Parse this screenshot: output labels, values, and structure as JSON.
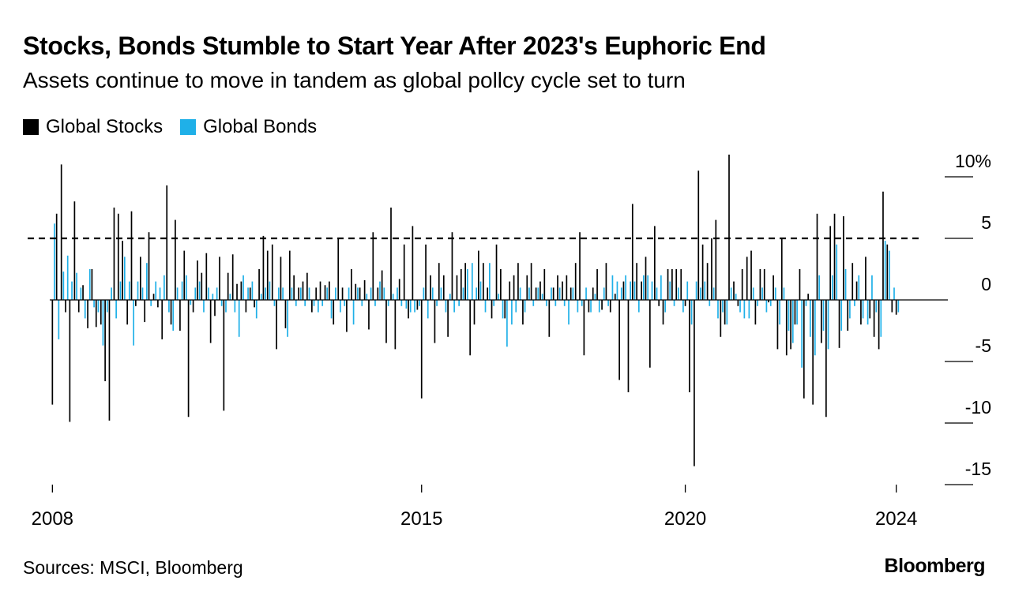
{
  "header": {
    "title": "Stocks, Bonds Stumble to Start Year After 2023's Euphoric End",
    "subtitle": "Assets continue to move in tandem as global pollcy cycle set to turn"
  },
  "footer": {
    "source": "Sources: MSCI, Bloomberg",
    "brand": "Bloomberg"
  },
  "chart_data": {
    "type": "bar",
    "title": "Stocks, Bonds Stumble to Start Year After 2023's Euphoric End",
    "subtitle": "Assets continue to move in tandem as global pollcy cycle set to turn",
    "x_unit": "year",
    "xlim": [
      2007.95,
      2024.05
    ],
    "x_ticks": [
      2008,
      2015,
      2020,
      2024
    ],
    "x_tick_labels": [
      "2008",
      "2015",
      "2020",
      "2024"
    ],
    "y_ticks": [
      10,
      5,
      0,
      -5,
      -10,
      -15
    ],
    "y_tick_labels": [
      "10%",
      "5",
      "0",
      "-5",
      "-10",
      "-15"
    ],
    "ylim": [
      -15.5,
      12
    ],
    "reference_line": {
      "value": 5,
      "style": "dashed"
    },
    "legend_position": "top-left",
    "series": [
      {
        "name": "Global Stocks",
        "color": "#000000",
        "x": [
          2008.0,
          2008.08,
          2008.17,
          2008.25,
          2008.33,
          2008.42,
          2008.5,
          2008.58,
          2008.67,
          2008.75,
          2008.83,
          2008.92,
          2009.0,
          2009.08,
          2009.17,
          2009.25,
          2009.33,
          2009.42,
          2009.5,
          2009.58,
          2009.67,
          2009.75,
          2009.83,
          2009.92,
          2010.0,
          2010.08,
          2010.17,
          2010.25,
          2010.33,
          2010.42,
          2010.5,
          2010.58,
          2010.67,
          2010.75,
          2010.83,
          2010.92,
          2011.0,
          2011.08,
          2011.17,
          2011.25,
          2011.33,
          2011.42,
          2011.5,
          2011.58,
          2011.67,
          2011.75,
          2011.83,
          2011.92,
          2012.0,
          2012.08,
          2012.17,
          2012.25,
          2012.33,
          2012.42,
          2012.5,
          2012.58,
          2012.67,
          2012.75,
          2012.83,
          2012.92,
          2013.0,
          2013.08,
          2013.17,
          2013.25,
          2013.33,
          2013.42,
          2013.5,
          2013.58,
          2013.67,
          2013.75,
          2013.83,
          2013.92,
          2014.0,
          2014.08,
          2014.17,
          2014.25,
          2014.33,
          2014.42,
          2014.5,
          2014.58,
          2014.67,
          2014.75,
          2014.83,
          2014.92,
          2015.0,
          2015.08,
          2015.17,
          2015.25,
          2015.33,
          2015.42,
          2015.5,
          2015.58,
          2015.67,
          2015.75,
          2015.83,
          2015.92,
          2016.0,
          2016.08,
          2016.17,
          2016.25,
          2016.33,
          2016.42,
          2016.5,
          2016.58,
          2016.67,
          2016.75,
          2016.83,
          2016.92,
          2017.0,
          2017.08,
          2017.17,
          2017.25,
          2017.33,
          2017.42,
          2017.5,
          2017.58,
          2017.67,
          2017.75,
          2017.83,
          2017.92,
          2018.0,
          2018.08,
          2018.17,
          2018.25,
          2018.33,
          2018.42,
          2018.5,
          2018.58,
          2018.67,
          2018.75,
          2018.83,
          2018.92,
          2019.0,
          2019.08,
          2019.17,
          2019.25,
          2019.33,
          2019.42,
          2019.5,
          2019.58,
          2019.67,
          2019.75,
          2019.83,
          2019.92,
          2020.0,
          2020.08,
          2020.17,
          2020.25,
          2020.33,
          2020.42,
          2020.5,
          2020.58,
          2020.67,
          2020.75,
          2020.83,
          2020.92,
          2021.0,
          2021.08,
          2021.17,
          2021.25,
          2021.33,
          2021.42,
          2021.5,
          2021.58,
          2021.67,
          2021.75,
          2021.83,
          2021.92,
          2022.0,
          2022.08,
          2022.17,
          2022.25,
          2022.33,
          2022.42,
          2022.5,
          2022.58,
          2022.67,
          2022.75,
          2022.83,
          2022.92,
          2023.0,
          2023.08,
          2023.17,
          2023.25,
          2023.33,
          2023.42,
          2023.5,
          2023.58,
          2023.67,
          2023.75,
          2023.83,
          2023.92,
          2024.0
        ],
        "values": [
          -8.5,
          7.0,
          11.0,
          -1.0,
          -9.9,
          8.0,
          -1.0,
          1.2,
          -2.3,
          2.5,
          -2.2,
          -2.0,
          -6.6,
          -9.8,
          7.5,
          7.0,
          4.8,
          -2.0,
          7.2,
          -0.5,
          3.5,
          -1.8,
          5.5,
          0.5,
          -0.6,
          -3.2,
          9.3,
          -2.0,
          6.5,
          -2.5,
          4.0,
          -9.5,
          -1.0,
          3.2,
          2.2,
          3.8,
          -3.5,
          -1.3,
          3.5,
          -9.0,
          2.2,
          3.7,
          1.3,
          1.5,
          -1.0,
          1.0,
          -0.6,
          2.5,
          5.2,
          4.0,
          4.5,
          -4.0,
          3.5,
          -2.3,
          4.0,
          2.0,
          1.0,
          1.5,
          2.2,
          -1.0,
          1.0,
          1.5,
          1.2,
          1.5,
          -2.0,
          5.0,
          1.0,
          -2.6,
          2.5,
          1.3,
          1.0,
          1.6,
          -2.4,
          5.5,
          1.0,
          2.4,
          -3.5,
          7.5,
          -4.0,
          1.7,
          4.5,
          -1.5,
          6.0,
          -0.8,
          -8.0,
          4.5,
          2.0,
          -3.5,
          3.0,
          2.0,
          -3.0,
          5.5,
          2.0,
          2.5,
          3.0,
          -4.5,
          -2.0,
          4.0,
          3.0,
          1.0,
          -1.5,
          4.5,
          2.5,
          -1.5,
          1.5,
          2.0,
          3.0,
          -2.0,
          2.0,
          3.0,
          1.0,
          1.5,
          2.5,
          -3.0,
          1.0,
          2.0,
          1.5,
          2.0,
          1.0,
          3.0,
          5.5,
          -4.5,
          -1.0,
          1.0,
          2.5,
          -0.8,
          3.0,
          -1.0,
          0.5,
          -6.5,
          1.5,
          -7.5,
          7.8,
          3.0,
          1.5,
          3.5,
          -5.5,
          6.0,
          -0.5,
          -2.0,
          2.5,
          2.5,
          2.5,
          2.5,
          -0.5,
          -7.5,
          -13.5,
          10.5,
          4.5,
          3.0,
          5.0,
          6.5,
          -3.0,
          -2.0,
          11.8,
          1.5,
          -0.5,
          2.5,
          3.5,
          4.0,
          -2.0,
          2.5,
          2.5,
          -0.2,
          2.0,
          -4.0,
          5.0,
          -4.5,
          -4.0,
          -2.0,
          2.5,
          -8.0,
          0.5,
          -8.5,
          7.0,
          -3.5,
          -9.5,
          6.0,
          7.0,
          -3.9,
          6.8,
          -2.5,
          3.0,
          1.5,
          -2.0,
          3.5,
          -1.5,
          -3.0,
          -4.0,
          8.8,
          4.5,
          -1.0,
          -1.2
        ]
      },
      {
        "name": "Global Bonds",
        "color": "#1fb0e8",
        "x": [
          2008.04,
          2008.12,
          2008.21,
          2008.29,
          2008.37,
          2008.46,
          2008.54,
          2008.62,
          2008.71,
          2008.79,
          2008.87,
          2008.96,
          2009.04,
          2009.12,
          2009.21,
          2009.29,
          2009.37,
          2009.46,
          2009.54,
          2009.62,
          2009.71,
          2009.79,
          2009.87,
          2009.96,
          2010.04,
          2010.12,
          2010.21,
          2010.29,
          2010.37,
          2010.46,
          2010.54,
          2010.62,
          2010.71,
          2010.79,
          2010.87,
          2010.96,
          2011.04,
          2011.12,
          2011.21,
          2011.29,
          2011.37,
          2011.46,
          2011.54,
          2011.62,
          2011.71,
          2011.79,
          2011.87,
          2011.96,
          2012.04,
          2012.12,
          2012.21,
          2012.29,
          2012.37,
          2012.46,
          2012.54,
          2012.62,
          2012.71,
          2012.79,
          2012.87,
          2012.96,
          2013.04,
          2013.12,
          2013.21,
          2013.29,
          2013.37,
          2013.46,
          2013.54,
          2013.62,
          2013.71,
          2013.79,
          2013.87,
          2013.96,
          2014.04,
          2014.12,
          2014.21,
          2014.29,
          2014.37,
          2014.46,
          2014.54,
          2014.62,
          2014.71,
          2014.79,
          2014.87,
          2014.96,
          2015.04,
          2015.12,
          2015.21,
          2015.29,
          2015.37,
          2015.46,
          2015.54,
          2015.62,
          2015.71,
          2015.79,
          2015.87,
          2015.96,
          2016.04,
          2016.12,
          2016.21,
          2016.29,
          2016.37,
          2016.46,
          2016.54,
          2016.62,
          2016.71,
          2016.79,
          2016.87,
          2016.96,
          2017.04,
          2017.12,
          2017.21,
          2017.29,
          2017.37,
          2017.46,
          2017.54,
          2017.62,
          2017.71,
          2017.79,
          2017.87,
          2017.96,
          2018.04,
          2018.12,
          2018.21,
          2018.29,
          2018.37,
          2018.46,
          2018.54,
          2018.62,
          2018.71,
          2018.79,
          2018.87,
          2018.96,
          2019.04,
          2019.12,
          2019.21,
          2019.29,
          2019.37,
          2019.46,
          2019.54,
          2019.62,
          2019.71,
          2019.79,
          2019.87,
          2019.96,
          2020.04,
          2020.12,
          2020.21,
          2020.29,
          2020.37,
          2020.46,
          2020.54,
          2020.62,
          2020.71,
          2020.79,
          2020.87,
          2020.96,
          2021.04,
          2021.12,
          2021.21,
          2021.29,
          2021.37,
          2021.46,
          2021.54,
          2021.62,
          2021.71,
          2021.79,
          2021.87,
          2021.96,
          2022.04,
          2022.12,
          2022.21,
          2022.29,
          2022.37,
          2022.46,
          2022.54,
          2022.62,
          2022.71,
          2022.79,
          2022.87,
          2022.96,
          2023.04,
          2023.12,
          2023.21,
          2023.29,
          2023.37,
          2023.46,
          2023.54,
          2023.62,
          2023.71,
          2023.79,
          2023.87,
          2023.96,
          2024.04
        ],
        "values": [
          6.2,
          -3.2,
          2.3,
          3.6,
          1.5,
          2.2,
          1.0,
          -1.5,
          2.5,
          -0.6,
          -1.0,
          -3.7,
          -1.0,
          1.0,
          -1.5,
          1.5,
          3.5,
          1.5,
          -3.7,
          1.5,
          1.0,
          3.0,
          -0.5,
          1.5,
          1.0,
          2.0,
          -1.0,
          -2.5,
          1.0,
          1.5,
          2.0,
          -0.4,
          1.0,
          1.5,
          -1.0,
          1.0,
          0.5,
          1.0,
          -0.5,
          -1.0,
          0.5,
          -1.0,
          -3.0,
          2.0,
          1.0,
          1.5,
          -1.5,
          0.5,
          1.0,
          1.5,
          -0.5,
          1.0,
          1.0,
          -3.0,
          1.0,
          -0.5,
          1.0,
          -0.5,
          1.0,
          -0.5,
          -1.0,
          -0.5,
          1.0,
          -1.5,
          1.0,
          -1.0,
          -0.5,
          1.0,
          -2.0,
          1.0,
          -0.5,
          0.5,
          1.0,
          -0.5,
          1.5,
          1.0,
          -0.5,
          0.5,
          1.0,
          -0.5,
          -0.7,
          -1.0,
          -1.0,
          -0.5,
          1.0,
          -1.5,
          1.0,
          -0.5,
          1.0,
          -1.0,
          0.5,
          -1.0,
          -0.5,
          1.0,
          2.5,
          3.0,
          1.0,
          1.5,
          -1.0,
          3.0,
          -0.5,
          0.5,
          -1.5,
          -3.8,
          -2.0,
          -1.0,
          1.0,
          -1.0,
          1.0,
          -0.5,
          1.0,
          0.5,
          -0.5,
          1.0,
          -0.5,
          1.0,
          -0.5,
          -2.0,
          1.0,
          -1.0,
          -0.5,
          1.0,
          -1.0,
          0.5,
          -1.0,
          1.0,
          -0.5,
          2.0,
          1.5,
          1.0,
          2.0,
          1.5,
          1.5,
          -1.0,
          2.0,
          2.0,
          1.5,
          1.0,
          2.0,
          -1.0,
          1.5,
          -0.5,
          1.0,
          -1.0,
          1.5,
          -2.0,
          1.5,
          1.0,
          1.5,
          -0.5,
          1.0,
          -1.5,
          -1.0,
          -2.0,
          1.0,
          0.5,
          -1.0,
          -1.5,
          -1.5,
          1.0,
          -0.5,
          1.0,
          -1.0,
          -0.5,
          1.0,
          -2.0,
          1.0,
          -2.5,
          -3.5,
          -2.0,
          -5.5,
          -0.5,
          -3.0,
          -4.5,
          2.0,
          -2.5,
          -4.0,
          2.0,
          4.5,
          -2.5,
          2.5,
          -1.5,
          -0.5,
          2.0,
          -1.5,
          -2.0,
          2.0,
          -1.0,
          -3.0,
          4.8,
          4.0,
          1.0,
          -1.0
        ]
      }
    ]
  }
}
